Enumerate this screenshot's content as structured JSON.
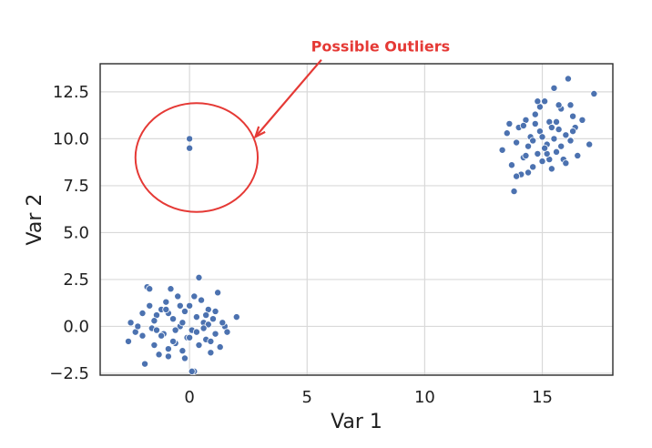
{
  "chart_data": {
    "type": "scatter",
    "title": "",
    "xlabel": "Var 1",
    "ylabel": "Var 2",
    "xlim": [
      -3.8,
      18.0
    ],
    "ylim": [
      -2.6,
      14.0
    ],
    "x_ticks": [
      0,
      5,
      10,
      15
    ],
    "y_ticks": [
      -2.5,
      0.0,
      2.5,
      5.0,
      7.5,
      10.0,
      12.5
    ],
    "x_tick_labels": [
      "0",
      "5",
      "10",
      "15"
    ],
    "y_tick_labels": [
      "−2.5",
      "0.0",
      "2.5",
      "5.0",
      "7.5",
      "10.0",
      "12.5"
    ],
    "grid": true,
    "point_color": "#4c72b0",
    "series": [
      {
        "points": [
          [
            -2.6,
            -0.8
          ],
          [
            -2.5,
            0.2
          ],
          [
            -2.3,
            -0.3
          ],
          [
            -2.2,
            0.0
          ],
          [
            -2.0,
            0.7
          ],
          [
            -1.9,
            -2.0
          ],
          [
            -1.8,
            2.1
          ],
          [
            -1.7,
            2.0
          ],
          [
            -1.6,
            -0.1
          ],
          [
            -1.5,
            -1.0
          ],
          [
            -1.4,
            0.6
          ],
          [
            -1.3,
            -1.5
          ],
          [
            -1.2,
            0.9
          ],
          [
            -1.1,
            -0.4
          ],
          [
            -1.0,
            1.3
          ],
          [
            -0.9,
            -1.6
          ],
          [
            -0.8,
            2.0
          ],
          [
            -0.7,
            0.4
          ],
          [
            -0.6,
            -0.9
          ],
          [
            -0.5,
            1.6
          ],
          [
            -0.4,
            0.0
          ],
          [
            -0.3,
            -1.3
          ],
          [
            -0.2,
            0.8
          ],
          [
            -0.1,
            -0.6
          ],
          [
            0.0,
            1.1
          ],
          [
            0.1,
            -0.2
          ],
          [
            0.2,
            -2.4
          ],
          [
            0.3,
            0.5
          ],
          [
            0.4,
            -1.0
          ],
          [
            0.5,
            1.4
          ],
          [
            0.6,
            0.2
          ],
          [
            0.7,
            -0.7
          ],
          [
            0.8,
            0.9
          ],
          [
            0.9,
            -1.4
          ],
          [
            1.0,
            0.4
          ],
          [
            1.1,
            -0.4
          ],
          [
            1.2,
            1.8
          ],
          [
            1.3,
            -1.1
          ],
          [
            1.5,
            0.0
          ],
          [
            1.6,
            -0.3
          ],
          [
            -1.5,
            0.3
          ],
          [
            -0.9,
            0.7
          ],
          [
            -0.3,
            0.2
          ],
          [
            0.3,
            -0.3
          ],
          [
            0.8,
            0.1
          ],
          [
            -1.2,
            -0.5
          ],
          [
            -0.6,
            -0.2
          ],
          [
            0.0,
            -0.6
          ],
          [
            0.6,
            -0.1
          ],
          [
            1.1,
            0.8
          ],
          [
            -2.0,
            -0.5
          ],
          [
            -1.7,
            1.1
          ],
          [
            -0.9,
            -1.2
          ],
          [
            -0.4,
            1.1
          ],
          [
            0.2,
            1.6
          ],
          [
            0.9,
            -0.8
          ],
          [
            1.4,
            0.2
          ],
          [
            2.0,
            0.5
          ],
          [
            -1.0,
            0.9
          ],
          [
            -0.2,
            -1.7
          ],
          [
            0.4,
            2.6
          ],
          [
            0.1,
            -2.4
          ],
          [
            -0.7,
            -0.8
          ],
          [
            -1.4,
            -0.2
          ],
          [
            0.7,
            0.6
          ]
        ]
      },
      {
        "points": [
          [
            0.0,
            10.0
          ],
          [
            0.0,
            9.5
          ]
        ]
      },
      {
        "points": [
          [
            13.3,
            9.4
          ],
          [
            13.5,
            10.3
          ],
          [
            13.6,
            10.8
          ],
          [
            13.7,
            8.6
          ],
          [
            13.8,
            7.2
          ],
          [
            13.9,
            9.8
          ],
          [
            14.0,
            10.6
          ],
          [
            14.1,
            8.1
          ],
          [
            14.2,
            9.0
          ],
          [
            14.3,
            11.0
          ],
          [
            14.4,
            9.6
          ],
          [
            14.5,
            10.1
          ],
          [
            14.6,
            8.5
          ],
          [
            14.7,
            11.3
          ],
          [
            14.8,
            9.2
          ],
          [
            14.9,
            10.4
          ],
          [
            15.0,
            8.8
          ],
          [
            15.1,
            12.0
          ],
          [
            15.2,
            9.7
          ],
          [
            15.3,
            10.9
          ],
          [
            15.4,
            8.4
          ],
          [
            15.5,
            12.7
          ],
          [
            15.6,
            9.3
          ],
          [
            15.7,
            10.5
          ],
          [
            15.8,
            11.6
          ],
          [
            15.9,
            8.9
          ],
          [
            16.0,
            10.2
          ],
          [
            16.1,
            13.2
          ],
          [
            16.2,
            9.9
          ],
          [
            16.3,
            11.2
          ],
          [
            16.4,
            10.6
          ],
          [
            16.5,
            9.1
          ],
          [
            16.7,
            11.0
          ],
          [
            17.0,
            9.7
          ],
          [
            17.2,
            12.4
          ],
          [
            14.2,
            10.7
          ],
          [
            14.6,
            9.9
          ],
          [
            15.0,
            10.1
          ],
          [
            15.4,
            10.6
          ],
          [
            15.8,
            9.6
          ],
          [
            14.9,
            11.7
          ],
          [
            15.3,
            8.9
          ],
          [
            15.6,
            10.9
          ],
          [
            14.4,
            8.2
          ],
          [
            16.0,
            8.7
          ],
          [
            15.2,
            9.2
          ],
          [
            14.7,
            10.8
          ],
          [
            16.3,
            10.4
          ],
          [
            13.9,
            8.0
          ],
          [
            14.8,
            12.0
          ],
          [
            15.7,
            11.8
          ],
          [
            15.1,
            9.5
          ],
          [
            14.3,
            9.1
          ],
          [
            16.2,
            11.8
          ],
          [
            15.5,
            10.0
          ]
        ]
      }
    ],
    "annotations": [
      {
        "text": "Possible Outliers",
        "color": "#e53935",
        "circle_center": [
          0.3,
          9.0
        ],
        "circle_radius_x": 2.6,
        "circle_radius_y": 2.9,
        "text_anchor": [
          5.8,
          14.5
        ],
        "arrow_tip": [
          2.8,
          10.1
        ]
      }
    ]
  }
}
